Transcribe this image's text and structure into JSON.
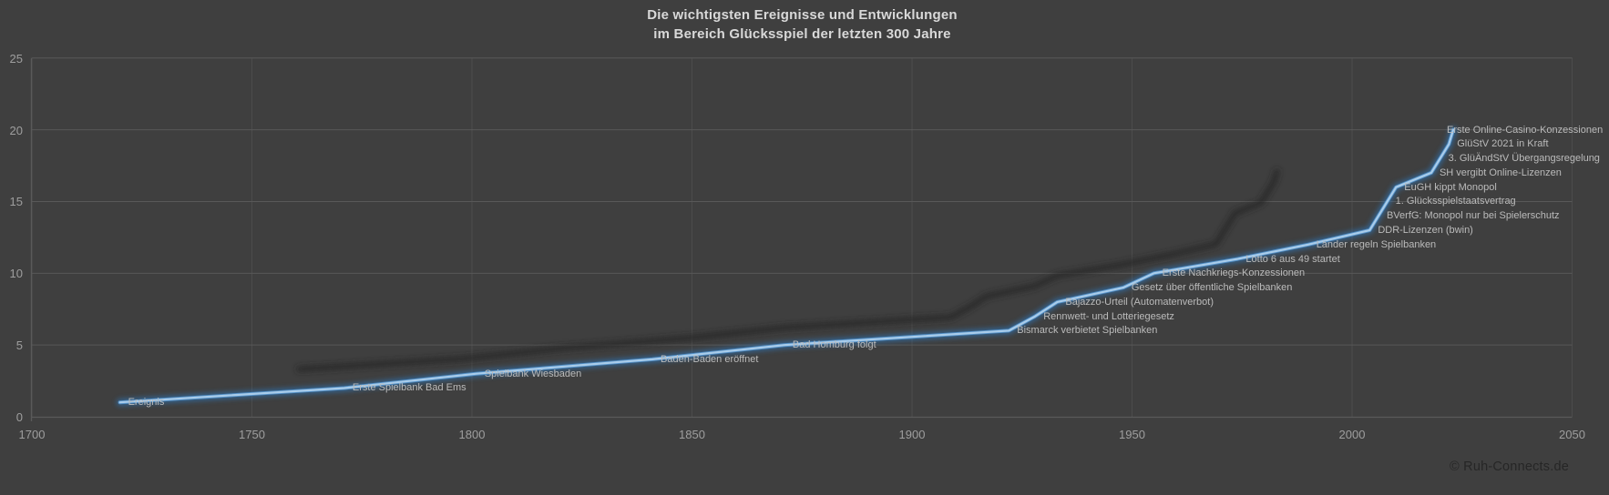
{
  "title": {
    "line1": "Die wichtigsten Ereignisse und Entwicklungen",
    "line2": "im Bereich Glücksspiel der letzten 300 Jahre"
  },
  "watermark": "© Ruh-Connects.de",
  "colors": {
    "background": "#3F3F3F",
    "title_text": "#D9D9D9",
    "tick_text": "#9E9E9E",
    "event_label_text": "#BBBBBB",
    "grid_horizontal": "#585858",
    "grid_vertical": "#4C4C4C",
    "axis": "#5A5A5A",
    "line_core": "#A9CCEA",
    "line_mid": "#5B9BD5",
    "line_glow": "#2E75B6",
    "line_shadow": "#262626",
    "watermark_text": "#262626"
  },
  "chart_data": {
    "type": "line",
    "series_name": "Ereignis",
    "title": "Die wichtigsten Ereignisse und Entwicklungen im Bereich Glücksspiel der letzten 300 Jahre",
    "xlabel": "",
    "ylabel": "",
    "xlim": [
      1700,
      2050
    ],
    "ylim": [
      0,
      25
    ],
    "x_ticks": [
      1700,
      1750,
      1800,
      1850,
      1900,
      1950,
      2000,
      2050
    ],
    "y_ticks": [
      0,
      5,
      10,
      15,
      20,
      25
    ],
    "grid": true,
    "legend": false,
    "points": [
      {
        "label": "Ereignis",
        "x": 1720,
        "y": 1
      },
      {
        "label": "Erste Spielbank Bad Ems",
        "x": 1771,
        "y": 2
      },
      {
        "label": "Spielbank Wiesbaden",
        "x": 1801,
        "y": 3
      },
      {
        "label": "Baden-Baden eröffnet",
        "x": 1841,
        "y": 4
      },
      {
        "label": "Bad Homburg folgt",
        "x": 1871,
        "y": 5
      },
      {
        "label": "Bismarck verbietet Spielbanken",
        "x": 1922,
        "y": 6
      },
      {
        "label": "Rennwett- und Lotteriegesetz",
        "x": 1928,
        "y": 7
      },
      {
        "label": "Bajazzo-Urteil (Automatenverbot)",
        "x": 1933,
        "y": 8
      },
      {
        "label": "Gesetz über öffentliche Spielbanken",
        "x": 1948,
        "y": 9
      },
      {
        "label": "Erste Nachkriegs-Konzessionen",
        "x": 1955,
        "y": 10
      },
      {
        "label": "Lotto 6 aus 49 startet",
        "x": 1974,
        "y": 11
      },
      {
        "label": "Länder regeln Spielbanken",
        "x": 1990,
        "y": 12
      },
      {
        "label": "DDR-Lizenzen (bwin)",
        "x": 2004,
        "y": 13
      },
      {
        "label": "BVerfG: Monopol nur bei Spielerschutz",
        "x": 2006,
        "y": 14
      },
      {
        "label": "1. Glücksspielstaatsvertrag",
        "x": 2008,
        "y": 15
      },
      {
        "label": "EuGH kippt Monopol",
        "x": 2010,
        "y": 16
      },
      {
        "label": "SH vergibt Online-Lizenzen",
        "x": 2018,
        "y": 17
      },
      {
        "label": "3. GlüÄndStV Übergangsregelung",
        "x": 2020,
        "y": 18
      },
      {
        "label": "GlüStV 2021 in Kraft",
        "x": 2022,
        "y": 19
      },
      {
        "label": "Erste Online-Casino-Konzessionen",
        "x": 2023,
        "y": 20
      }
    ]
  }
}
